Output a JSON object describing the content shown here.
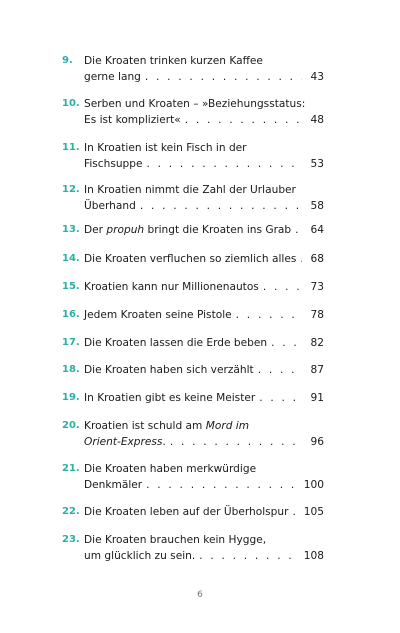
{
  "entries": [
    {
      "num": "9.",
      "first": "Die Kroaten trinken kurzen Kaffee",
      "last": "gerne lang",
      "italic_part": "",
      "last_suffix": "",
      "page": "43"
    },
    {
      "num": "10.",
      "first": "Serben und Kroaten – »Beziehungsstatus:",
      "last": "Es ist kompliziert«",
      "italic_part": "",
      "last_suffix": "",
      "page": "48"
    },
    {
      "num": "11.",
      "first": "In Kroatien ist kein Fisch in der",
      "last": "Fischsuppe",
      "italic_part": "",
      "last_suffix": "",
      "page": "53"
    },
    {
      "num": "12.",
      "first": "In Kroatien nimmt die Zahl der Urlauber",
      "last": "Überhand",
      "italic_part": "",
      "last_suffix": "",
      "page": "58"
    },
    {
      "num": "13.",
      "first": "",
      "last": "Der ",
      "italic_part": "propuh",
      "last_suffix": " bringt die Kroaten ins Grab",
      "page": "64"
    },
    {
      "num": "14.",
      "first": "",
      "last": "Die Kroaten verfluchen so ziemlich alles",
      "italic_part": "",
      "last_suffix": "",
      "page": "68"
    },
    {
      "num": "15.",
      "first": "",
      "last": "Kroatien kann nur Millionenautos",
      "italic_part": "",
      "last_suffix": "",
      "page": "73"
    },
    {
      "num": "16.",
      "first": "",
      "last": "Jedem Kroaten seine Pistole",
      "italic_part": "",
      "last_suffix": "",
      "page": "78"
    },
    {
      "num": "17.",
      "first": "",
      "last": "Die Kroaten lassen die Erde beben",
      "italic_part": "",
      "last_suffix": "",
      "page": "82"
    },
    {
      "num": "18.",
      "first": "",
      "last": "Die Kroaten haben sich verzählt",
      "italic_part": "",
      "last_suffix": "",
      "page": "87"
    },
    {
      "num": "19.",
      "first": "",
      "last": "In Kroatien gibt es keine Meister",
      "italic_part": "",
      "last_suffix": "",
      "page": "91"
    },
    {
      "num": "20.",
      "first": "Kroatien ist schuld am ",
      "first_italic": "Mord im",
      "last": "",
      "italic_part": "Orient-Express",
      "last_suffix": ".",
      "page": "96"
    },
    {
      "num": "21.",
      "first": "Die Kroaten haben merkwürdige",
      "last": "Denkmäler",
      "italic_part": "",
      "last_suffix": "",
      "page": "100"
    },
    {
      "num": "22.",
      "first": "",
      "last": "Die Kroaten leben auf der Überholspur",
      "italic_part": "",
      "last_suffix": "",
      "page": "105"
    },
    {
      "num": "23.",
      "first": "Die Kroaten brauchen kein Hygge,",
      "last": "um glücklich zu sein.",
      "italic_part": "",
      "last_suffix": "",
      "page": "108"
    }
  ],
  "page_number": "6"
}
